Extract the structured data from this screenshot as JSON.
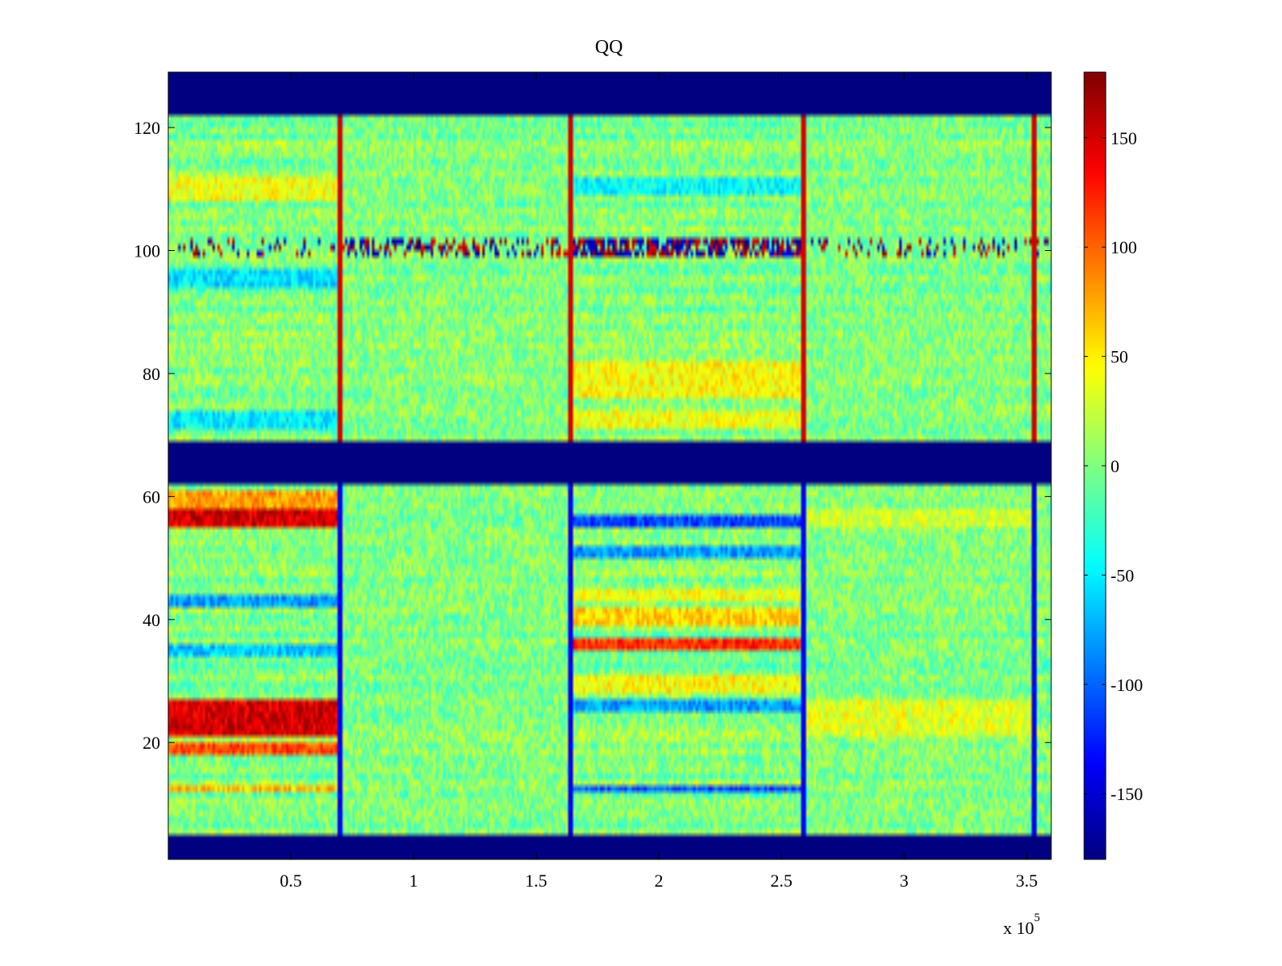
{
  "chart_data": {
    "type": "heatmap",
    "title": "QQ",
    "xlabel": "",
    "ylabel": "",
    "x_exponent_label": "x 10",
    "x_exponent_power": "5",
    "xlim": [
      0,
      3.6
    ],
    "ylim": [
      1,
      129
    ],
    "x_ticks": [
      0.5,
      1,
      1.5,
      2,
      2.5,
      3,
      3.5
    ],
    "x_tick_labels": [
      "0.5",
      "1",
      "1.5",
      "2",
      "2.5",
      "3",
      "3.5"
    ],
    "y_ticks": [
      20,
      40,
      60,
      80,
      100,
      120
    ],
    "y_tick_labels": [
      "20",
      "40",
      "60",
      "80",
      "100",
      "120"
    ],
    "colorbar": {
      "range": [
        -180,
        180
      ],
      "ticks": [
        -150,
        -100,
        -50,
        0,
        50,
        100,
        150
      ],
      "tick_labels": [
        "-150",
        "-100",
        "-50",
        "0",
        "50",
        "100",
        "150"
      ],
      "colormap": "jet"
    },
    "segment_boundaries_x": [
      0.7,
      1.64,
      2.59,
      3.53
    ],
    "masked_rows": [
      [
        1,
        4
      ],
      [
        62,
        68
      ],
      [
        122,
        129
      ]
    ],
    "masked_value": -180,
    "background_mean": 0,
    "row_features": [
      {
        "rows": [
          99,
          101
        ],
        "segments": [
          1,
          2,
          3,
          4,
          5
        ],
        "value": 160,
        "noise": "sparse-spikes"
      },
      {
        "rows": [
          108,
          111
        ],
        "segments": [
          1
        ],
        "value": 40
      },
      {
        "rows": [
          94,
          96
        ],
        "segments": [
          1
        ],
        "value": -55
      },
      {
        "rows": [
          71,
          73
        ],
        "segments": [
          1
        ],
        "value": -50
      },
      {
        "rows": [
          55,
          57
        ],
        "segments": [
          1
        ],
        "value": 150
      },
      {
        "rows": [
          58,
          60
        ],
        "segments": [
          1
        ],
        "value": 80
      },
      {
        "rows": [
          42,
          43
        ],
        "segments": [
          1
        ],
        "value": -80
      },
      {
        "rows": [
          34,
          35
        ],
        "segments": [
          1
        ],
        "value": -65
      },
      {
        "rows": [
          21,
          26
        ],
        "segments": [
          1
        ],
        "value": 150
      },
      {
        "rows": [
          18,
          19
        ],
        "segments": [
          1
        ],
        "value": 110
      },
      {
        "rows": [
          12,
          12
        ],
        "segments": [
          1
        ],
        "value": 70
      },
      {
        "rows": [
          109,
          111
        ],
        "segments": [
          3
        ],
        "value": -45
      },
      {
        "rows": [
          76,
          81
        ],
        "segments": [
          3
        ],
        "value": 45
      },
      {
        "rows": [
          71,
          73
        ],
        "segments": [
          3
        ],
        "value": 40
      },
      {
        "rows": [
          55,
          56
        ],
        "segments": [
          3
        ],
        "value": -110
      },
      {
        "rows": [
          50,
          51
        ],
        "segments": [
          3
        ],
        "value": -80
      },
      {
        "rows": [
          43,
          44
        ],
        "segments": [
          3
        ],
        "value": 40
      },
      {
        "rows": [
          39,
          41
        ],
        "segments": [
          3
        ],
        "value": 60
      },
      {
        "rows": [
          35,
          36
        ],
        "segments": [
          3
        ],
        "value": 120
      },
      {
        "rows": [
          28,
          30
        ],
        "segments": [
          3
        ],
        "value": 45
      },
      {
        "rows": [
          25,
          26
        ],
        "segments": [
          3
        ],
        "value": -80
      },
      {
        "rows": [
          12,
          12
        ],
        "segments": [
          3
        ],
        "value": -110
      },
      {
        "rows": [
          21,
          26
        ],
        "segments": [
          4
        ],
        "value": 35
      },
      {
        "rows": [
          55,
          57
        ],
        "segments": [
          4
        ],
        "value": 30
      }
    ]
  },
  "colors": {
    "background": "#ffffff",
    "axis": "#000000",
    "masked_band": "#00008f"
  }
}
